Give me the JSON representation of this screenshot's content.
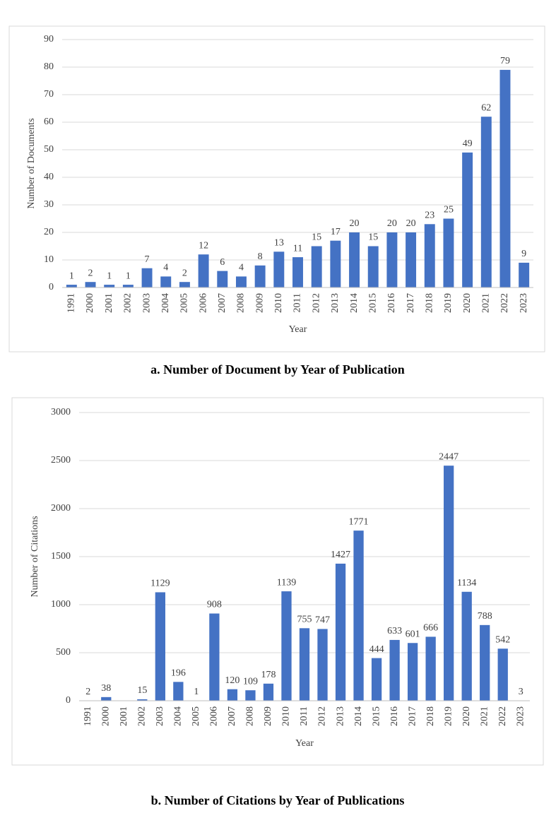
{
  "chart_data": [
    {
      "type": "bar",
      "caption": "a. Number of Document by Year of Publication",
      "x_label": "Year",
      "y_label": "Number of  Documents",
      "categories": [
        "1991",
        "2000",
        "2001",
        "2002",
        "2003",
        "2004",
        "2005",
        "2006",
        "2007",
        "2008",
        "2009",
        "2010",
        "2011",
        "2012",
        "2013",
        "2014",
        "2015",
        "2016",
        "2017",
        "2018",
        "2019",
        "2020",
        "2021",
        "2022",
        "2023"
      ],
      "values": [
        1,
        2,
        1,
        1,
        7,
        4,
        2,
        12,
        6,
        4,
        8,
        13,
        11,
        15,
        17,
        20,
        15,
        20,
        20,
        23,
        25,
        49,
        62,
        79,
        9
      ],
      "color": "#4472c4",
      "ylim": [
        0,
        90
      ],
      "yticks": [
        0,
        10,
        20,
        30,
        40,
        50,
        60,
        70,
        80,
        90
      ],
      "grid": true
    },
    {
      "type": "bar",
      "caption": "b. Number of Citations by Year of Publications",
      "x_label": "Year",
      "y_label": "Number of Citations",
      "categories": [
        "1991",
        "2000",
        "2001",
        "2002",
        "2003",
        "2004",
        "2005",
        "2006",
        "2007",
        "2008",
        "2009",
        "2010",
        "2011",
        "2012",
        "2013",
        "2014",
        "2015",
        "2016",
        "2017",
        "2018",
        "2019",
        "2020",
        "2021",
        "2022",
        "2023"
      ],
      "values": [
        2,
        38,
        null,
        15,
        1129,
        196,
        1,
        908,
        120,
        109,
        178,
        1139,
        755,
        747,
        1427,
        1771,
        444,
        633,
        601,
        666,
        2447,
        1134,
        788,
        542,
        3
      ],
      "color": "#4472c4",
      "ylim": [
        0,
        3000
      ],
      "yticks": [
        0,
        500,
        1000,
        1500,
        2000,
        2500,
        3000
      ],
      "grid": true
    }
  ]
}
